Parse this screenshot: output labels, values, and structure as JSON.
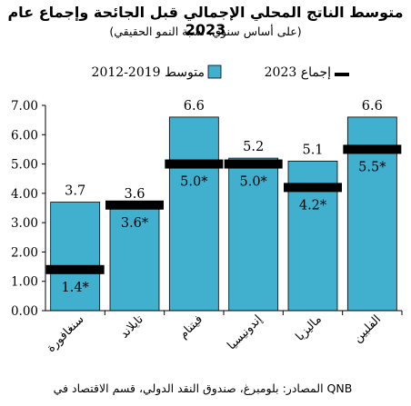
{
  "chart_data": {
    "type": "bar",
    "title": "متوسط الناتج المحلي الإجمالي قبل الجائحة وإجماع عام 2023",
    "subtitle": "(على أساس سنوي، نسبة النمو الحقيقي)",
    "source": "المصادر: بلومبرغ، صندوق النقد الدولي، قسم الاقتصاد في QNB",
    "categories": [
      "سنغافورة",
      "تايلاند",
      "فيتنام",
      "إندونيسيا",
      "ماليزيا",
      "الفلبين"
    ],
    "series": [
      {
        "name": "متوسط 2019-2012",
        "type": "bar",
        "color": "#41b0cf",
        "values": [
          3.7,
          3.6,
          6.6,
          5.2,
          5.1,
          6.6
        ],
        "labels": [
          "3.7",
          "3.6",
          "6.6",
          "5.2",
          "5.1",
          "6.6"
        ]
      },
      {
        "name": "إجماع 2023",
        "type": "marker",
        "color": "#000000",
        "values": [
          1.4,
          3.6,
          5.0,
          5.0,
          4.2,
          5.5
        ],
        "labels": [
          "1.4*",
          "3.6*",
          "5.0*",
          "5.0*",
          "4.2*",
          "5.5*"
        ]
      }
    ],
    "ylim": [
      0,
      7
    ],
    "yticks": [
      "0.00",
      "1.00",
      "2.00",
      "3.00",
      "4.00",
      "5.00",
      "6.00",
      "7.00"
    ],
    "ytick_values": [
      0,
      1,
      2,
      3,
      4,
      5,
      6,
      7
    ],
    "legend_position": "top",
    "grid": false
  }
}
